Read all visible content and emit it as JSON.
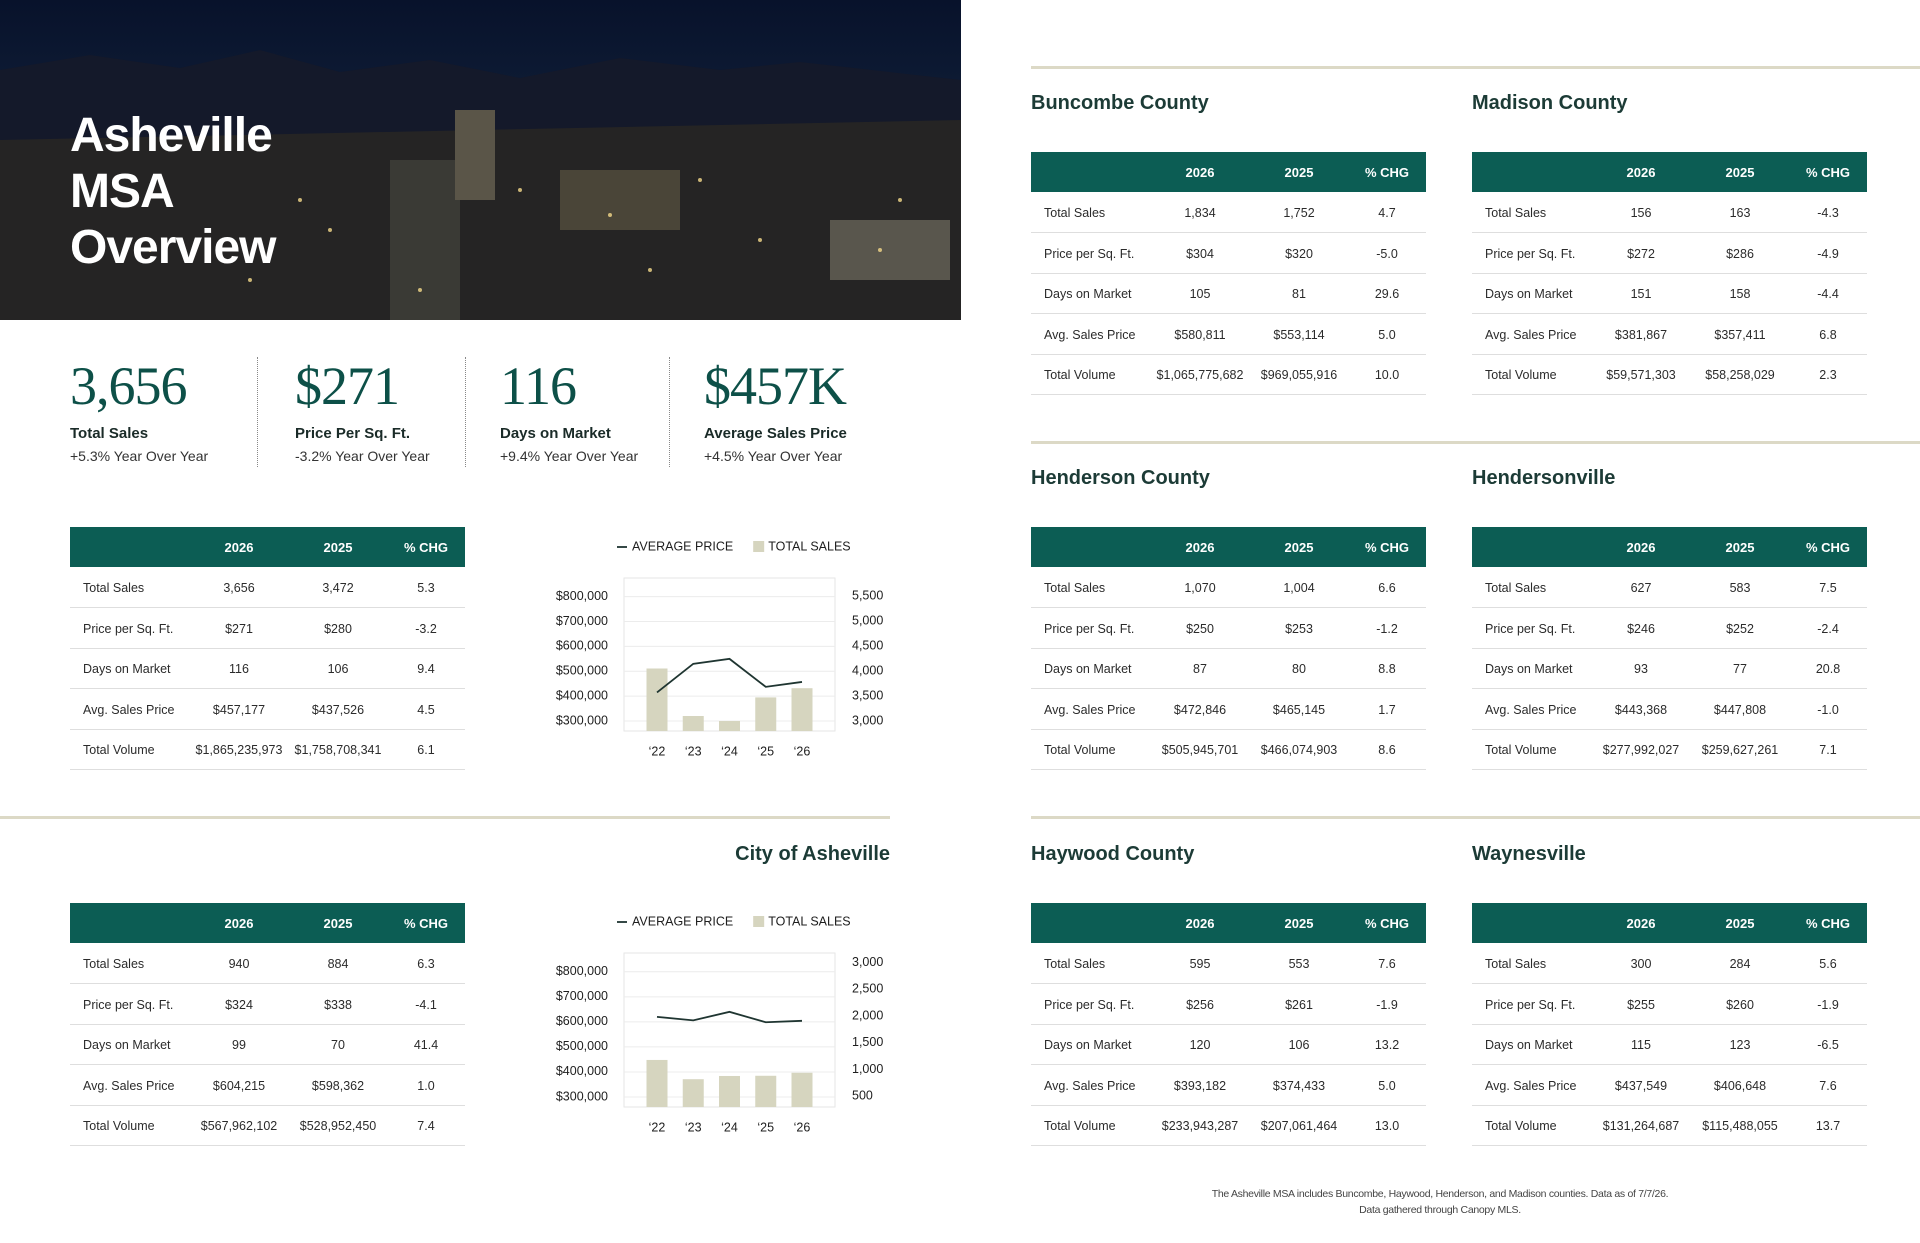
{
  "header": {
    "title": "Asheville MSA Overview"
  },
  "kpis": [
    {
      "value": "3,656",
      "label": "Total Sales",
      "change": "+5.3% Year Over Year"
    },
    {
      "value": "$271",
      "label": "Price Per Sq. Ft.",
      "change": "-3.2% Year Over Year"
    },
    {
      "value": "116",
      "label": "Days on Market",
      "change": "+9.4% Year Over Year"
    },
    {
      "value": "$457K",
      "label": "Average Sales Price",
      "change": "+4.5% Year Over Year"
    }
  ],
  "tables": [
    {
      "columns": [
        "2026",
        "2025",
        "% CHG"
      ],
      "rows": [
        [
          "Total Sales",
          "3,656",
          "3,472",
          "5.3"
        ],
        [
          "Price per Sq. Ft.",
          "$271",
          "$280",
          "-3.2"
        ],
        [
          "Days on Market",
          "116",
          "106",
          "9.4"
        ],
        [
          "Avg. Sales Price",
          "$457,177",
          "$437,526",
          "4.5"
        ],
        [
          "Total Volume",
          "$1,865,235,973",
          "$1,758,708,341",
          "6.1"
        ]
      ]
    },
    {
      "title": "City of Asheville",
      "columns": [
        "2026",
        "2025",
        "% CHG"
      ],
      "rows": [
        [
          "Total Sales",
          "940",
          "884",
          "6.3"
        ],
        [
          "Price per Sq. Ft.",
          "$324",
          "$338",
          "-4.1"
        ],
        [
          "Days on Market",
          "99",
          "70",
          "41.4"
        ],
        [
          "Avg. Sales Price",
          "$604,215",
          "$598,362",
          "1.0"
        ],
        [
          "Total Volume",
          "$567,962,102",
          "$528,952,450",
          "7.4"
        ]
      ]
    },
    {
      "title": "Buncombe County",
      "columns": [
        "2026",
        "2025",
        "% CHG"
      ],
      "rows": [
        [
          "Total Sales",
          "1,834",
          "1,752",
          "4.7"
        ],
        [
          "Price per Sq. Ft.",
          "$304",
          "$320",
          "-5.0"
        ],
        [
          "Days on Market",
          "105",
          "81",
          "29.6"
        ],
        [
          "Avg. Sales Price",
          "$580,811",
          "$553,114",
          "5.0"
        ],
        [
          "Total Volume",
          "$1,065,775,682",
          "$969,055,916",
          "10.0"
        ]
      ]
    },
    {
      "title": "Madison County",
      "columns": [
        "2026",
        "2025",
        "% CHG"
      ],
      "rows": [
        [
          "Total Sales",
          "156",
          "163",
          "-4.3"
        ],
        [
          "Price per Sq. Ft.",
          "$272",
          "$286",
          "-4.9"
        ],
        [
          "Days on Market",
          "151",
          "158",
          "-4.4"
        ],
        [
          "Avg. Sales Price",
          "$381,867",
          "$357,411",
          "6.8"
        ],
        [
          "Total Volume",
          "$59,571,303",
          "$58,258,029",
          "2.3"
        ]
      ]
    },
    {
      "title": "Henderson County",
      "columns": [
        "2026",
        "2025",
        "% CHG"
      ],
      "rows": [
        [
          "Total Sales",
          "1,070",
          "1,004",
          "6.6"
        ],
        [
          "Price per Sq. Ft.",
          "$250",
          "$253",
          "-1.2"
        ],
        [
          "Days on Market",
          "87",
          "80",
          "8.8"
        ],
        [
          "Avg. Sales Price",
          "$472,846",
          "$465,145",
          "1.7"
        ],
        [
          "Total Volume",
          "$505,945,701",
          "$466,074,903",
          "8.6"
        ]
      ]
    },
    {
      "title": "Hendersonville",
      "columns": [
        "2026",
        "2025",
        "% CHG"
      ],
      "rows": [
        [
          "Total Sales",
          "627",
          "583",
          "7.5"
        ],
        [
          "Price per Sq. Ft.",
          "$246",
          "$252",
          "-2.4"
        ],
        [
          "Days on Market",
          "93",
          "77",
          "20.8"
        ],
        [
          "Avg. Sales Price",
          "$443,368",
          "$447,808",
          "-1.0"
        ],
        [
          "Total Volume",
          "$277,992,027",
          "$259,627,261",
          "7.1"
        ]
      ]
    },
    {
      "title": "Haywood County",
      "columns": [
        "2026",
        "2025",
        "% CHG"
      ],
      "rows": [
        [
          "Total Sales",
          "595",
          "553",
          "7.6"
        ],
        [
          "Price per Sq. Ft.",
          "$256",
          "$261",
          "-1.9"
        ],
        [
          "Days on Market",
          "120",
          "106",
          "13.2"
        ],
        [
          "Avg. Sales Price",
          "$393,182",
          "$374,433",
          "5.0"
        ],
        [
          "Total Volume",
          "$233,943,287",
          "$207,061,464",
          "13.0"
        ]
      ]
    },
    {
      "title": "Waynesville",
      "columns": [
        "2026",
        "2025",
        "% CHG"
      ],
      "rows": [
        [
          "Total Sales",
          "300",
          "284",
          "5.6"
        ],
        [
          "Price per Sq. Ft.",
          "$255",
          "$260",
          "-1.9"
        ],
        [
          "Days on Market",
          "115",
          "123",
          "-6.5"
        ],
        [
          "Avg. Sales Price",
          "$437,549",
          "$406,648",
          "7.6"
        ],
        [
          "Total Volume",
          "$131,264,687",
          "$115,488,055",
          "13.7"
        ]
      ]
    }
  ],
  "chart_data": [
    {
      "type": "combo",
      "categories": [
        "‘22",
        "‘23",
        "‘24",
        "‘25",
        "‘26"
      ],
      "series": [
        {
          "name": "AVERAGE PRICE",
          "type": "line",
          "color": "#1f3531",
          "values": [
            415000,
            530000,
            550000,
            437526,
            457177
          ]
        },
        {
          "name": "TOTAL SALES",
          "type": "bar",
          "axis": "y2",
          "color": "#d6d5bf",
          "values": [
            4050,
            3100,
            3000,
            3472,
            3656
          ]
        }
      ],
      "ylim": [
        260000,
        875000
      ],
      "yticks": [
        {
          "value": 300000,
          "label": "$300,000"
        },
        {
          "value": 400000,
          "label": "$400,000"
        },
        {
          "value": 500000,
          "label": "$500,000"
        },
        {
          "value": 600000,
          "label": "$600,000"
        },
        {
          "value": 700000,
          "label": "$700,000"
        },
        {
          "value": 800000,
          "label": "$800,000"
        }
      ],
      "y2lim": [
        2800,
        5860
      ],
      "y2ticks": [
        {
          "value": 3000,
          "label": "3,000"
        },
        {
          "value": 3500,
          "label": "3,500"
        },
        {
          "value": 4000,
          "label": "4,000"
        },
        {
          "value": 4500,
          "label": "4,500"
        },
        {
          "value": 5000,
          "label": "5,000"
        },
        {
          "value": 5500,
          "label": "5,500"
        }
      ],
      "grid": true
    },
    {
      "type": "combo",
      "categories": [
        "‘22",
        "‘23",
        "‘24",
        "‘25",
        "‘26"
      ],
      "series": [
        {
          "name": "AVERAGE PRICE",
          "type": "line",
          "color": "#1f3531",
          "values": [
            620000,
            606000,
            640000,
            598362,
            604215
          ]
        },
        {
          "name": "TOTAL SALES",
          "type": "bar",
          "axis": "y2",
          "color": "#d6d5bf",
          "values": [
            1180,
            820,
            880,
            884,
            940
          ]
        }
      ],
      "ylim": [
        260000,
        875000
      ],
      "yticks": [
        {
          "value": 300000,
          "label": "$300,000"
        },
        {
          "value": 400000,
          "label": "$400,000"
        },
        {
          "value": 500000,
          "label": "$500,000"
        },
        {
          "value": 600000,
          "label": "$600,000"
        },
        {
          "value": 700000,
          "label": "$700,000"
        },
        {
          "value": 800000,
          "label": "$800,000"
        }
      ],
      "y2lim": [
        300,
        3180
      ],
      "y2ticks": [
        500,
        {
          "value": 1000,
          "label": "1,000"
        },
        {
          "value": 1500,
          "label": "1,500"
        },
        {
          "value": 2000,
          "label": "2,000"
        },
        {
          "value": 2500,
          "label": "2,500"
        },
        {
          "value": 3000,
          "label": "3,000"
        }
      ],
      "grid": true
    }
  ],
  "footnote": [
    "The Asheville MSA includes Buncombe, Haywood, Henderson, and Madison counties. Data as of 7/7/26.",
    "Data gathered through Canopy MLS."
  ]
}
